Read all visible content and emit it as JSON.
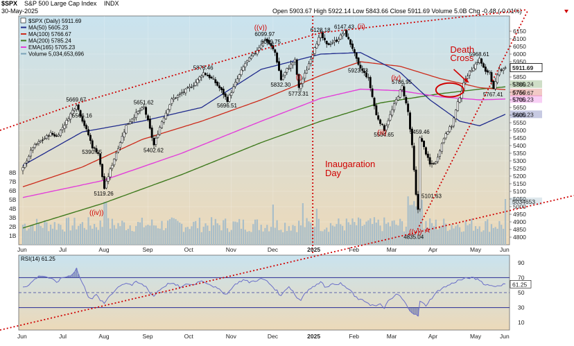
{
  "header": {
    "symbol": "$SPX",
    "name": "S&P 500 Large Cap Index",
    "exchange": "INDX",
    "date": "30-May-2025",
    "ohlc_line": "Open 5903.67   High 5922.14   Low 5843.66   Close 5911.69   Volume 5.0B   Chg -0.48 (-0.01%)",
    "arrow_icon": "down-triangle-icon"
  },
  "legend": [
    {
      "text": "$SPX (Daily) 5911.69",
      "color": "#000000"
    },
    {
      "text": "MA(50) 5605.23",
      "color": "#1f2a8c"
    },
    {
      "text": "MA(100) 5766.67",
      "color": "#cc2a1a"
    },
    {
      "text": "MA(200) 5785.24",
      "color": "#3f7a1e"
    },
    {
      "text": "EMA(165) 5705.23",
      "color": "#e23fd9"
    },
    {
      "text": "Volume 5,034,653,696",
      "color": "#7aa2b8"
    }
  ],
  "colors": {
    "bg_top": "#c9e3ef",
    "bg_bottom": "#ecd9b9",
    "candle_up": "#ffffff",
    "candle_down": "#000000",
    "volume": "#a9bec9",
    "red": "#d00000",
    "rsi_line": "#6a6ec8",
    "rsi_zone": "#bcc0e8"
  },
  "chart_data": [
    {
      "type": "line",
      "title": "$SPX (Daily) 5911.69",
      "ylim": [
        4750,
        6250
      ],
      "yticks": [
        4800,
        4850,
        4900,
        4950,
        5000,
        5050,
        5100,
        5150,
        5200,
        5250,
        5300,
        5350,
        5400,
        5450,
        5500,
        5550,
        5600,
        5650,
        5700,
        5750,
        5800,
        5850,
        5900,
        5950,
        6000,
        6050,
        6100,
        6150
      ],
      "volume_ticks": [
        "1B",
        "2B",
        "3B",
        "4B",
        "5B",
        "6B",
        "7B",
        "8B"
      ],
      "price_tags": [
        {
          "value": 5911.69,
          "label": "5911.69",
          "style": "current"
        },
        {
          "value": 5785.24,
          "label": "5785.24",
          "color": "#3f7a1e"
        },
        {
          "value": 5766.67,
          "label": "5766.67",
          "color": "#cc2a1a"
        },
        {
          "value": 5705.23,
          "label": "5705.23",
          "color": "#e23fd9"
        },
        {
          "value": 5605.23,
          "label": "5605.23",
          "color": "#1f2a8c"
        },
        {
          "value": 5034.653,
          "label": "5034653",
          "color": "#7aa2b8"
        }
      ],
      "x_labels": [
        "Jun",
        "Jul",
        "Aug",
        "Sep",
        "Oct",
        "Nov",
        "Dec",
        "2025",
        "Feb",
        "Mar",
        "Apr",
        "May",
        "Jun"
      ],
      "close_path": [
        [
          0,
          5250
        ],
        [
          5,
          5390
        ],
        [
          10,
          5440
        ],
        [
          14,
          5480
        ],
        [
          17,
          5460
        ],
        [
          22,
          5560
        ],
        [
          25,
          5630
        ],
        [
          27,
          5669.67
        ],
        [
          30,
          5566
        ],
        [
          33,
          5470
        ],
        [
          35,
          5390.95
        ],
        [
          38,
          5350
        ],
        [
          41,
          5119.26
        ],
        [
          44,
          5240
        ],
        [
          48,
          5390
        ],
        [
          52,
          5530
        ],
        [
          57,
          5610
        ],
        [
          61,
          5651.62
        ],
        [
          63,
          5560
        ],
        [
          66,
          5402.62
        ],
        [
          70,
          5560
        ],
        [
          75,
          5700
        ],
        [
          80,
          5745
        ],
        [
          86,
          5800
        ],
        [
          91,
          5878.46
        ],
        [
          96,
          5830
        ],
        [
          100,
          5760
        ],
        [
          103,
          5696.51
        ],
        [
          107,
          5810
        ],
        [
          112,
          5940
        ],
        [
          117,
          6010
        ],
        [
          122,
          6099.97
        ],
        [
          125,
          6049.75
        ],
        [
          127,
          6010
        ],
        [
          130,
          5832.3
        ],
        [
          133,
          5900
        ],
        [
          137,
          5960
        ],
        [
          139,
          5773.31
        ],
        [
          143,
          5900
        ],
        [
          147,
          6050
        ],
        [
          150,
          6128.18
        ],
        [
          153,
          6060
        ],
        [
          158,
          6090
        ],
        [
          162,
          6147.43
        ],
        [
          166,
          6040
        ],
        [
          169,
          5923.93
        ],
        [
          174,
          5840
        ],
        [
          178,
          5600
        ],
        [
          182,
          5504.65
        ],
        [
          185,
          5600
        ],
        [
          188,
          5700
        ],
        [
          191,
          5786.95
        ],
        [
          194,
          5620
        ],
        [
          196,
          5396
        ],
        [
          198,
          5074
        ],
        [
          199,
          4982
        ],
        [
          200,
          5459.46
        ],
        [
          203,
          5350
        ],
        [
          205,
          5275
        ],
        [
          208,
          5290
        ],
        [
          210,
          5375
        ],
        [
          213,
          5485
        ],
        [
          216,
          5530
        ],
        [
          219,
          5680
        ],
        [
          223,
          5845
        ],
        [
          226,
          5900
        ],
        [
          230,
          5968.61
        ],
        [
          233,
          5880
        ],
        [
          235,
          5888
        ],
        [
          237,
          5767.41
        ],
        [
          240,
          5900
        ],
        [
          243,
          5911.69
        ]
      ],
      "ma50_path": [
        [
          0,
          5270
        ],
        [
          30,
          5490
        ],
        [
          60,
          5560
        ],
        [
          90,
          5650
        ],
        [
          120,
          5900
        ],
        [
          150,
          6000
        ],
        [
          170,
          6010
        ],
        [
          190,
          5880
        ],
        [
          205,
          5700
        ],
        [
          220,
          5560
        ],
        [
          230,
          5530
        ],
        [
          243,
          5605.23
        ]
      ],
      "ma100_path": [
        [
          0,
          5130
        ],
        [
          30,
          5260
        ],
        [
          60,
          5440
        ],
        [
          90,
          5560
        ],
        [
          120,
          5700
        ],
        [
          150,
          5860
        ],
        [
          170,
          5950
        ],
        [
          190,
          5920
        ],
        [
          210,
          5840
        ],
        [
          230,
          5780
        ],
        [
          243,
          5766.67
        ]
      ],
      "ma200_path": [
        [
          0,
          4860
        ],
        [
          40,
          5020
        ],
        [
          80,
          5210
        ],
        [
          120,
          5420
        ],
        [
          150,
          5560
        ],
        [
          180,
          5680
        ],
        [
          210,
          5740
        ],
        [
          230,
          5770
        ],
        [
          243,
          5785.24
        ]
      ],
      "ema165_path": [
        [
          0,
          5060
        ],
        [
          40,
          5170
        ],
        [
          80,
          5350
        ],
        [
          120,
          5560
        ],
        [
          150,
          5710
        ],
        [
          170,
          5770
        ],
        [
          190,
          5760
        ],
        [
          210,
          5720
        ],
        [
          230,
          5700
        ],
        [
          243,
          5705.23
        ]
      ],
      "annotations": [
        {
          "label": "5669.67",
          "x": 27,
          "y": 5669.67
        },
        {
          "label": "5566.16",
          "x": 30,
          "y": 5566
        },
        {
          "label": "5390.95",
          "x": 35,
          "y": 5390.95
        },
        {
          "label": "5119.26",
          "x": 41,
          "y": 5119.26
        },
        {
          "label": "5651.62",
          "x": 61,
          "y": 5651.62
        },
        {
          "label": "5402.62",
          "x": 66,
          "y": 5402.62
        },
        {
          "label": "5878.46",
          "x": 91,
          "y": 5878.46
        },
        {
          "label": "5696.51",
          "x": 103,
          "y": 5696.51
        },
        {
          "label": "6099.97",
          "x": 122,
          "y": 6099.97
        },
        {
          "label": "6049.75",
          "x": 125,
          "y": 6049.75
        },
        {
          "label": "5832.30",
          "x": 130,
          "y": 5832.3
        },
        {
          "label": "5773.31",
          "x": 139,
          "y": 5773.31
        },
        {
          "label": "6128.18",
          "x": 150,
          "y": 6128.18
        },
        {
          "label": "6147.43",
          "x": 162,
          "y": 6147.43
        },
        {
          "label": "5923.93",
          "x": 169,
          "y": 5923.93
        },
        {
          "label": "5504.65",
          "x": 182,
          "y": 5504.65
        },
        {
          "label": "5786.95",
          "x": 191,
          "y": 5786.95
        },
        {
          "label": "5459.46",
          "x": 200,
          "y": 5459.46
        },
        {
          "label": "5101.63",
          "x": 206,
          "y": 5101.63
        },
        {
          "label": "4835.04",
          "x": 197,
          "y": 4835.04
        },
        {
          "label": "5968.61",
          "x": 230,
          "y": 5968.61
        },
        {
          "label": "5767.41",
          "x": 237,
          "y": 5767.41
        }
      ],
      "wave_labels": [
        {
          "text": "((iv))",
          "x": 37,
          "y": 4945
        },
        {
          "text": "((v))",
          "x": 120,
          "y": 6160
        },
        {
          "text": "(i)",
          "x": 141,
          "y": 5835
        },
        {
          "text": "(ii)",
          "x": 172,
          "y": 6165
        },
        {
          "text": "(iii)",
          "x": 182,
          "y": 5470
        },
        {
          "text": "(iv)",
          "x": 189,
          "y": 5830
        },
        {
          "text": "((v))",
          "x": 198,
          "y": 4820
        },
        {
          "text": "A",
          "x": 206,
          "y": 4830
        }
      ],
      "text_annotations": [
        {
          "text": "Inaugaration",
          "x": 155,
          "y": 5260
        },
        {
          "text": "Day",
          "x": 155,
          "y": 5200
        },
        {
          "text": "Death",
          "x": 218,
          "y": 6010
        },
        {
          "text": "Cross",
          "x": 218,
          "y": 5955
        }
      ]
    },
    {
      "type": "line",
      "title": "RSI(14) 61.25",
      "ylim": [
        0,
        100
      ],
      "yticks": [
        10,
        30,
        50,
        70,
        90
      ],
      "levels": [
        70,
        50,
        30
      ],
      "current_label": "61.25",
      "x_labels": [
        "Jun",
        "Jul",
        "Aug",
        "Sep",
        "Oct",
        "Nov",
        "Dec",
        "2025",
        "Feb",
        "Mar",
        "Apr",
        "May",
        "Jun"
      ],
      "values": [
        [
          0,
          58
        ],
        [
          3,
          60
        ],
        [
          6,
          68
        ],
        [
          9,
          73
        ],
        [
          12,
          71
        ],
        [
          15,
          67
        ],
        [
          17,
          64
        ],
        [
          20,
          70
        ],
        [
          23,
          72
        ],
        [
          25,
          75
        ],
        [
          27,
          82
        ],
        [
          29,
          68
        ],
        [
          31,
          57
        ],
        [
          33,
          45
        ],
        [
          35,
          42
        ],
        [
          37,
          47
        ],
        [
          39,
          40
        ],
        [
          41,
          35
        ],
        [
          43,
          44
        ],
        [
          46,
          52
        ],
        [
          49,
          60
        ],
        [
          52,
          63
        ],
        [
          55,
          60
        ],
        [
          57,
          64
        ],
        [
          59,
          62
        ],
        [
          62,
          58
        ],
        [
          64,
          50
        ],
        [
          66,
          45
        ],
        [
          68,
          52
        ],
        [
          71,
          58
        ],
        [
          74,
          63
        ],
        [
          77,
          60
        ],
        [
          80,
          57
        ],
        [
          83,
          62
        ],
        [
          86,
          60
        ],
        [
          89,
          66
        ],
        [
          92,
          64
        ],
        [
          95,
          60
        ],
        [
          98,
          55
        ],
        [
          101,
          50
        ],
        [
          103,
          48
        ],
        [
          105,
          56
        ],
        [
          108,
          63
        ],
        [
          111,
          67
        ],
        [
          114,
          64
        ],
        [
          117,
          66
        ],
        [
          120,
          68
        ],
        [
          122,
          67
        ],
        [
          125,
          60
        ],
        [
          128,
          52
        ],
        [
          130,
          45
        ],
        [
          132,
          54
        ],
        [
          134,
          58
        ],
        [
          136,
          52
        ],
        [
          138,
          43
        ],
        [
          140,
          40
        ],
        [
          142,
          50
        ],
        [
          145,
          56
        ],
        [
          148,
          60
        ],
        [
          150,
          66
        ],
        [
          152,
          58
        ],
        [
          155,
          60
        ],
        [
          158,
          62
        ],
        [
          160,
          62
        ],
        [
          162,
          58
        ],
        [
          165,
          53
        ],
        [
          167,
          45
        ],
        [
          170,
          40
        ],
        [
          173,
          38
        ],
        [
          175,
          34
        ],
        [
          178,
          32
        ],
        [
          180,
          34
        ],
        [
          182,
          30
        ],
        [
          184,
          38
        ],
        [
          186,
          42
        ],
        [
          188,
          48
        ],
        [
          190,
          45
        ],
        [
          192,
          38
        ],
        [
          194,
          30
        ],
        [
          196,
          24
        ],
        [
          198,
          20
        ],
        [
          199,
          19
        ],
        [
          200,
          38
        ],
        [
          203,
          33
        ],
        [
          205,
          40
        ],
        [
          207,
          46
        ],
        [
          209,
          52
        ],
        [
          211,
          56
        ],
        [
          213,
          58
        ],
        [
          216,
          62
        ],
        [
          219,
          66
        ],
        [
          222,
          68
        ],
        [
          225,
          70
        ],
        [
          227,
          69
        ],
        [
          230,
          67
        ],
        [
          233,
          60
        ],
        [
          235,
          61
        ],
        [
          237,
          58
        ],
        [
          240,
          60
        ],
        [
          243,
          61.25
        ]
      ]
    }
  ]
}
